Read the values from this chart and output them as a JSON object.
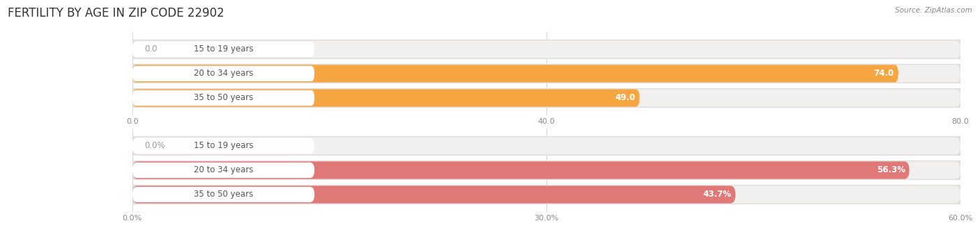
{
  "title": "FERTILITY BY AGE IN ZIP CODE 22902",
  "source": "Source: ZipAtlas.com",
  "top_chart": {
    "categories": [
      "15 to 19 years",
      "20 to 34 years",
      "35 to 50 years"
    ],
    "values": [
      0.0,
      74.0,
      49.0
    ],
    "max_value": 80.0,
    "tick_values": [
      0.0,
      40.0,
      80.0
    ],
    "tick_labels": [
      "0.0",
      "40.0",
      "80.0"
    ],
    "bar_color": "#F5A640",
    "bar_bg_color": "#F2EFEF",
    "bar_border_color": "#E0DCDC",
    "label_pill_color": "#FFFFFF",
    "value_color_inside": "#FFFFFF",
    "value_color_outside": "#999999"
  },
  "bottom_chart": {
    "categories": [
      "15 to 19 years",
      "20 to 34 years",
      "35 to 50 years"
    ],
    "values": [
      0.0,
      56.3,
      43.7
    ],
    "max_value": 60.0,
    "tick_values": [
      0.0,
      30.0,
      60.0
    ],
    "tick_labels": [
      "0.0%",
      "30.0%",
      "60.0%"
    ],
    "value_fmt": "{}%",
    "bar_color": "#E07878",
    "bar_bg_color": "#F2EFEF",
    "bar_border_color": "#E0DCDC",
    "label_pill_color": "#FFFFFF",
    "value_color_inside": "#FFFFFF",
    "value_color_outside": "#999999"
  },
  "bg_color": "#FFFFFF",
  "title_fontsize": 12,
  "label_fontsize": 8.5,
  "tick_fontsize": 8,
  "source_fontsize": 7.5,
  "bar_height": 0.72,
  "bar_gap": 1.0
}
